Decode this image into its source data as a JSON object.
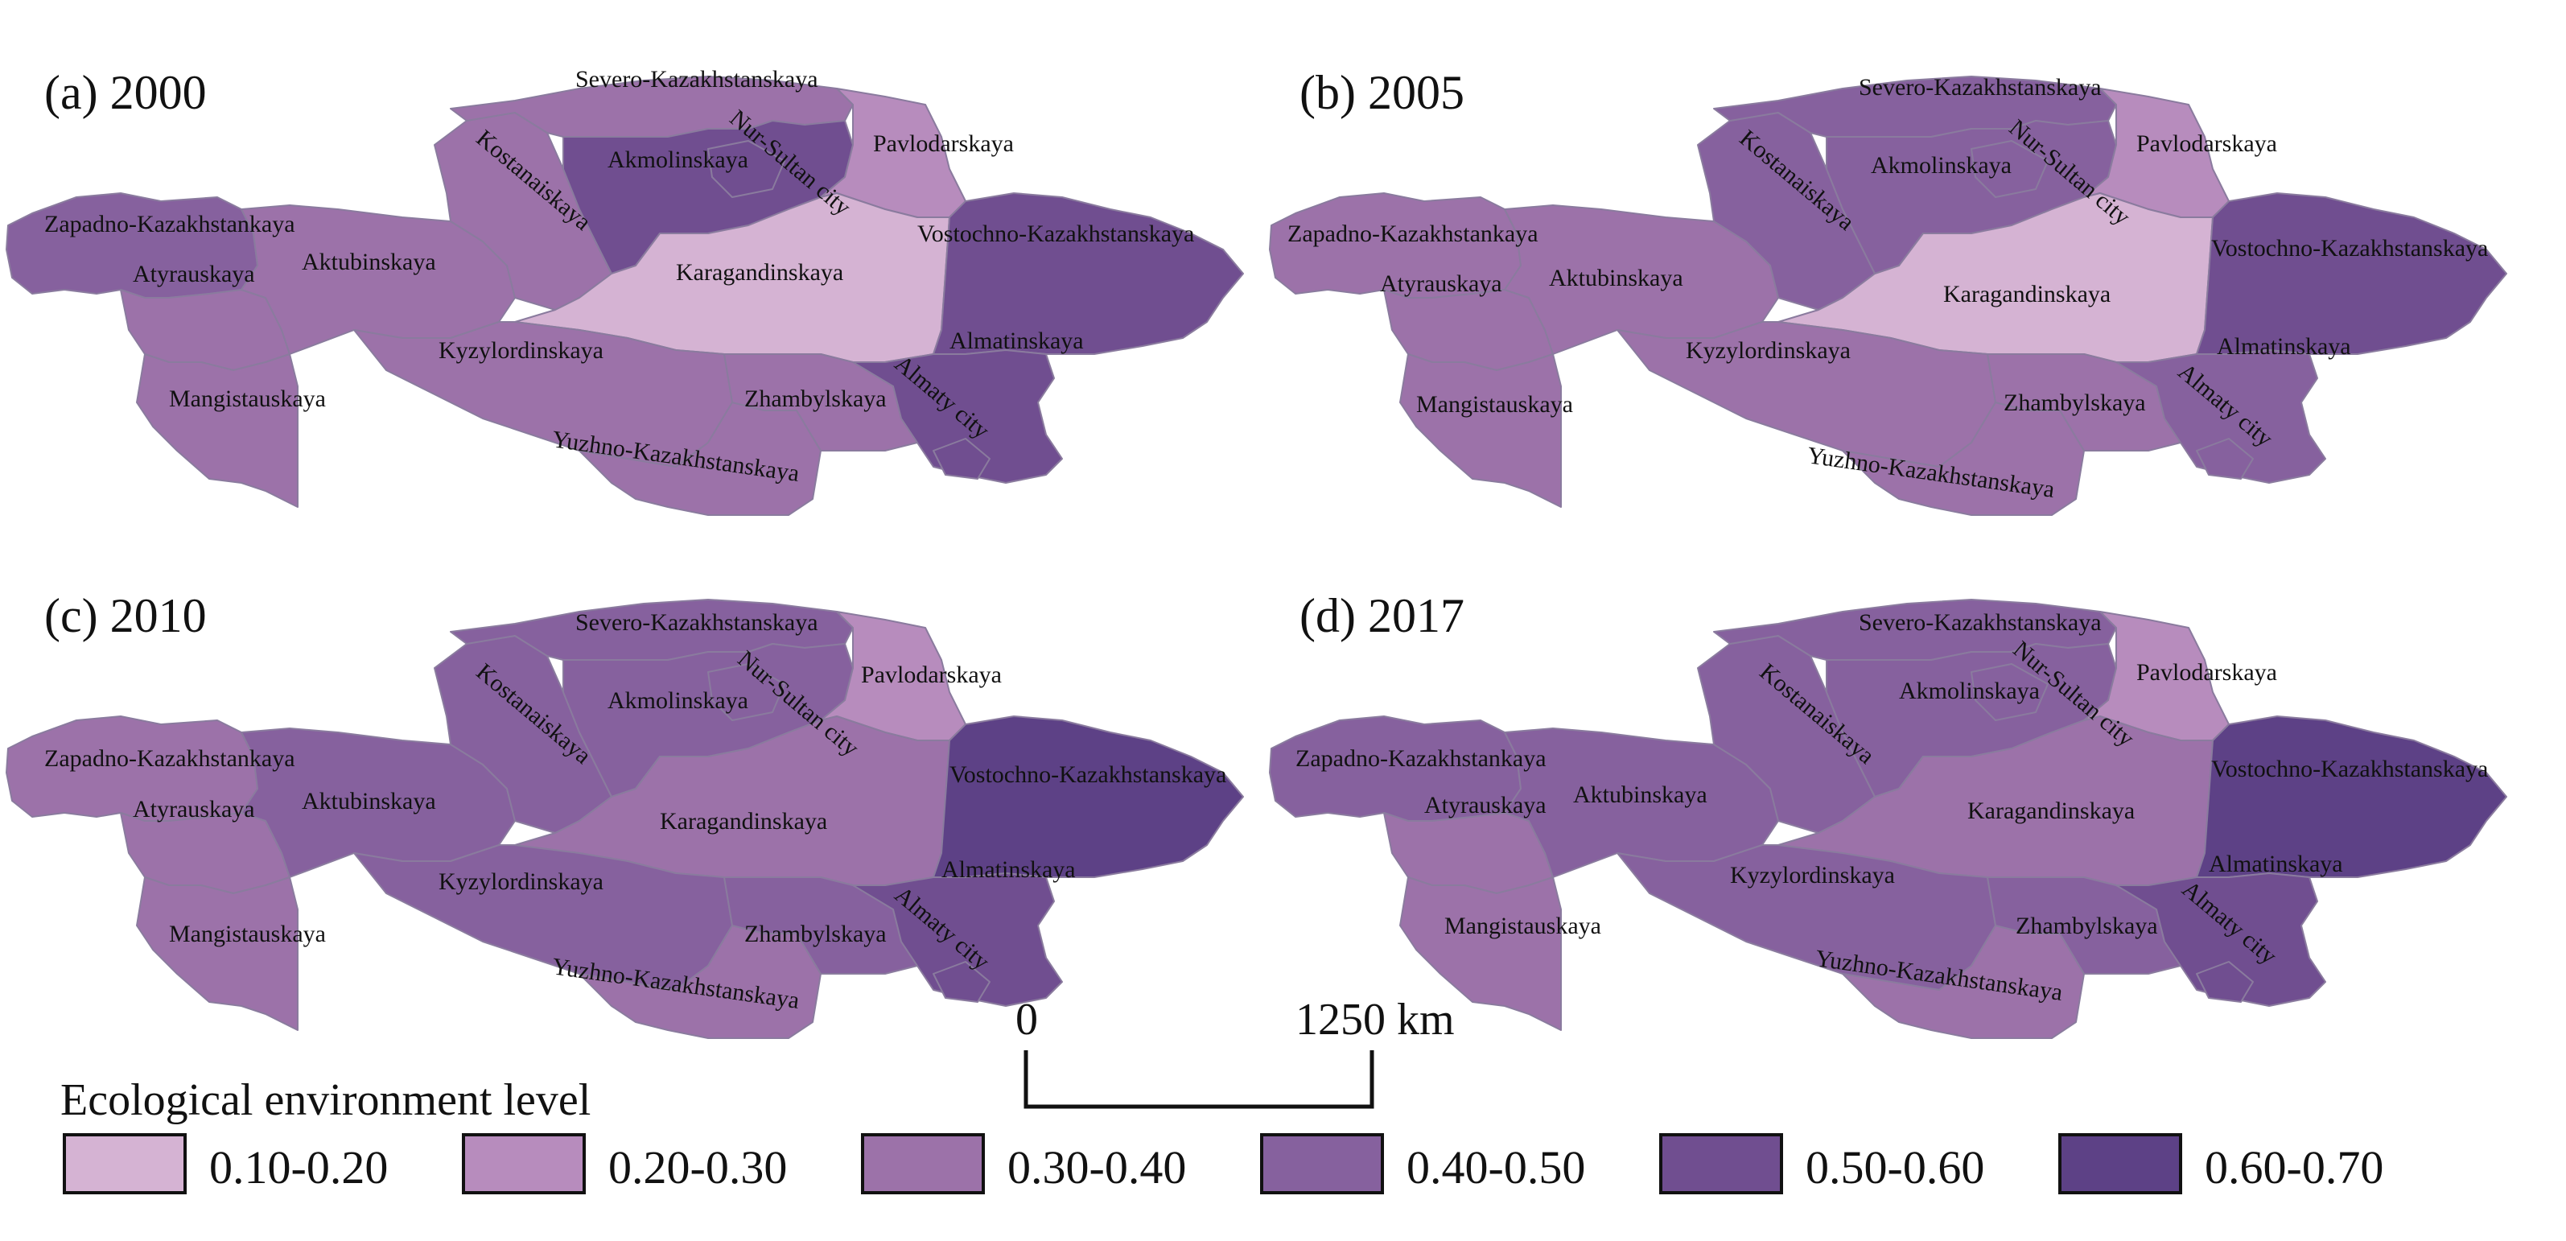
{
  "palette": {
    "c1": "#d5b3d3",
    "c2": "#b78cbd",
    "c3": "#9c72a9",
    "c4": "#86619e",
    "c5": "#704e90",
    "c6": "#5d4186"
  },
  "region_names": {
    "severo": "Severo-Kazakhstanskaya",
    "akmol": "Akmolinskaya",
    "nursultan": "Nur-Sultan city",
    "pavlodar": "Pavlodarskaya",
    "kostanai": "Kostanaiskaya",
    "zapadno": "Zapadno-Kazakhstankaya",
    "atyrau": "Atyrauskaya",
    "aktubinsk": "Aktubinskaya",
    "karaganda": "Karagandinskaya",
    "vostochno": "Vostochno-Kazakhstanskaya",
    "kyzylorda": "Kyzylordinskaya",
    "almatinsk": "Almatinskaya",
    "almatycity": "Almaty city",
    "mangistau": "Mangistauskaya",
    "zhambyl": "Zhambylskaya",
    "yuzhno": "Yuzhno-Kazakhstanskaya"
  },
  "panels": [
    {
      "title": "(a) 2000",
      "classes": {
        "zapadno": "c4",
        "atyrau": "c3",
        "aktubinsk": "c3",
        "mangistau": "c3",
        "kostanai": "c3",
        "severo": "c3",
        "akmol": "c5",
        "nursultan": "c5",
        "pavlodar": "c2",
        "karaganda": "c1",
        "vostochno": "c5",
        "almatinsk": "c5",
        "almatycity": "c5",
        "kyzylorda": "c3",
        "zhambyl": "c3",
        "yuzhno": "c3"
      }
    },
    {
      "title": "(b) 2005",
      "classes": {
        "zapadno": "c3",
        "atyrau": "c3",
        "aktubinsk": "c3",
        "mangistau": "c3",
        "kostanai": "c4",
        "severo": "c4",
        "akmol": "c4",
        "nursultan": "c4",
        "pavlodar": "c2",
        "karaganda": "c1",
        "vostochno": "c5",
        "almatinsk": "c4",
        "almatycity": "c4",
        "kyzylorda": "c3",
        "zhambyl": "c3",
        "yuzhno": "c3"
      }
    },
    {
      "title": "(c) 2010",
      "classes": {
        "zapadno": "c3",
        "atyrau": "c3",
        "aktubinsk": "c4",
        "mangistau": "c3",
        "kostanai": "c4",
        "severo": "c4",
        "akmol": "c4",
        "nursultan": "c4",
        "pavlodar": "c2",
        "karaganda": "c3",
        "vostochno": "c6",
        "almatinsk": "c5",
        "almatycity": "c5",
        "kyzylorda": "c4",
        "zhambyl": "c4",
        "yuzhno": "c3"
      }
    },
    {
      "title": "(d) 2017",
      "classes": {
        "zapadno": "c4",
        "atyrau": "c3",
        "aktubinsk": "c4",
        "mangistau": "c3",
        "kostanai": "c4",
        "severo": "c4",
        "akmol": "c4",
        "nursultan": "c4",
        "pavlodar": "c2",
        "karaganda": "c3",
        "vostochno": "c6",
        "almatinsk": "c5",
        "almatycity": "c5",
        "kyzylorda": "c4",
        "zhambyl": "c4",
        "yuzhno": "c3"
      }
    }
  ],
  "scale_bar": {
    "start_label": "0",
    "end_label": "1250 km"
  },
  "legend": {
    "title": "Ecological environment level",
    "items": [
      {
        "label": "0.10-0.20",
        "class": "c1"
      },
      {
        "label": "0.20-0.30",
        "class": "c2"
      },
      {
        "label": "0.30-0.40",
        "class": "c3"
      },
      {
        "label": "0.40-0.50",
        "class": "c4"
      },
      {
        "label": "0.50-0.60",
        "class": "c5"
      },
      {
        "label": "0.60-0.70",
        "class": "c6"
      }
    ]
  }
}
